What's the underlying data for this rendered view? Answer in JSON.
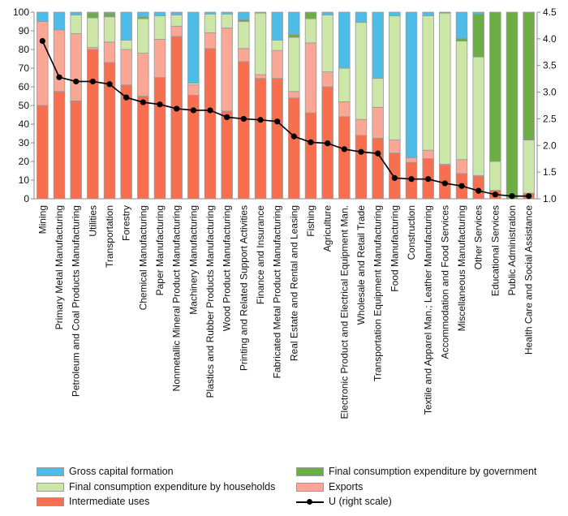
{
  "chart_data": {
    "type": "bar",
    "stacked": true,
    "categories": [
      "Mining",
      "Primary Metal Manufacturing",
      "Petroleum and Coal Products Manufacturing",
      "Utilities",
      "Transportation",
      "Forestry",
      "Chemical Manufacturing",
      "Paper Manufacturing",
      "Nonmetallic Mineral Product Manufacturing",
      "Machinery Manufacturing",
      "Plastics and Rubber Products Manufacturing",
      "Wood Product Manufacturing",
      "Printing and Related Support Activities",
      "Finance and Insurance",
      "Fabricated Metal Product Manufacturing",
      "Real Estate and Rental and Leasing",
      "Fishing",
      "Agriculture",
      "Electronic Product and Electrical Equipment Man.",
      "Wholesale and Retail Trade",
      "Transportation Equipment Manufacturing",
      "Food Manufacturing",
      "Construction",
      "Textile and Apparel Man.; Leather Manufacturing",
      "Accommodation and Food Services",
      "Miscellaneous Manufacturing",
      "Other Services",
      "Educational Services",
      "Public Administration",
      "Health Care and Social Assistance"
    ],
    "series": [
      {
        "name": "Intermediate uses",
        "color": "#F86F4F",
        "values": [
          50,
          57.5,
          52.5,
          80,
          73,
          61,
          55,
          65,
          87,
          55.5,
          80.5,
          47,
          73.5,
          64.5,
          64.5,
          54,
          46,
          60,
          44,
          34,
          32.5,
          24.5,
          19.5,
          21.5,
          18,
          13.5,
          12,
          4.5,
          0,
          3
        ]
      },
      {
        "name": "Exports",
        "color": "#FBA796",
        "values": [
          45,
          33,
          36,
          1,
          11,
          19,
          23,
          20.5,
          5.5,
          5.5,
          8.5,
          44.5,
          7,
          2,
          15,
          3.5,
          37.5,
          8,
          8,
          8.5,
          16.5,
          7,
          2.5,
          4.5,
          0.5,
          7.5,
          0.5,
          0,
          0,
          0
        ]
      },
      {
        "name": "Final consumption expenditure by households",
        "color": "#CCE6A7",
        "values": [
          0,
          0,
          10,
          16,
          13.5,
          5,
          18.5,
          12.5,
          6,
          1,
          10,
          7.5,
          14.5,
          33,
          5.5,
          29,
          13,
          30.5,
          18,
          52,
          15.5,
          66.5,
          0,
          72,
          81,
          63.5,
          63.5,
          15.5,
          0,
          28.5
        ]
      },
      {
        "name": "Final consumption expenditure by government",
        "color": "#6DAD45",
        "values": [
          0,
          0,
          0,
          2.5,
          2,
          0,
          1,
          0,
          0,
          0,
          0,
          0,
          1,
          0,
          0,
          1.5,
          3.5,
          0,
          0,
          0,
          0,
          0,
          0,
          0,
          0.5,
          1.5,
          23,
          80,
          100,
          68.5
        ]
      },
      {
        "name": "Gross capital formation",
        "color": "#4DBDE7",
        "values": [
          5,
          9.5,
          1.5,
          0.5,
          0.5,
          15,
          2.5,
          2,
          1.5,
          38,
          1,
          1,
          4,
          0.5,
          15,
          12,
          0,
          1.5,
          30,
          5.5,
          35.5,
          2,
          78,
          2,
          0,
          14,
          1,
          0,
          0,
          0
        ]
      }
    ],
    "line": {
      "name": "U (right scale)",
      "values": [
        3.96,
        3.28,
        3.2,
        3.2,
        3.15,
        2.9,
        2.81,
        2.77,
        2.69,
        2.66,
        2.66,
        2.53,
        2.5,
        2.48,
        2.45,
        2.17,
        2.06,
        2.04,
        1.93,
        1.88,
        1.85,
        1.39,
        1.37,
        1.37,
        1.29,
        1.24,
        1.15,
        1.08,
        1.05,
        1.05
      ]
    },
    "ylim": [
      0,
      100
    ],
    "y2lim": [
      1.0,
      4.5
    ],
    "yticks": [
      "0",
      "10",
      "20",
      "30",
      "40",
      "50",
      "60",
      "70",
      "80",
      "90",
      "100"
    ],
    "y2ticks": [
      "1.0",
      "1.5",
      "2.0",
      "2.5",
      "3.0",
      "3.5",
      "4.0",
      "4.5"
    ],
    "legend_placement": "bottom",
    "legend": {
      "gcf": "Gross capital formation",
      "gov": "Final consumption expenditure by government",
      "hh": "Final consumption expenditure by households",
      "exp": "Exports",
      "int": "Intermediate uses",
      "u": "U (right scale)"
    }
  }
}
